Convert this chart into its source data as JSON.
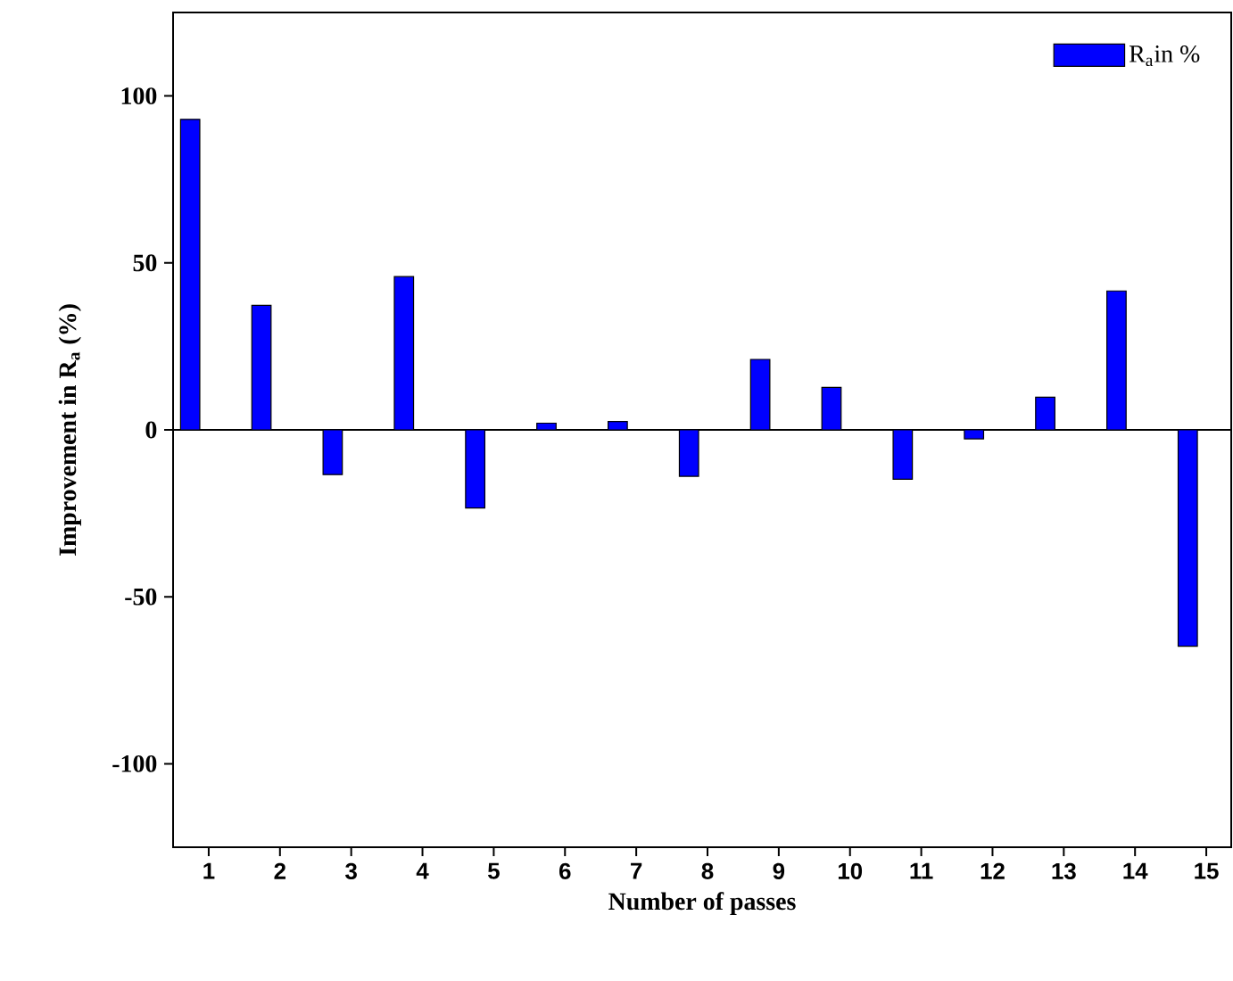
{
  "chart_data": {
    "type": "bar",
    "xlabel": "Number of passes",
    "ylabel": "Improvement in R$_{a}$ (%)",
    "categories": [
      "1",
      "2",
      "3",
      "4",
      "5",
      "6",
      "7",
      "8",
      "9",
      "10",
      "11",
      "12",
      "13",
      "14",
      "15"
    ],
    "series": [
      {
        "name": "R$_{a}$in %",
        "color": "#0000ff",
        "values": [
          93,
          37.3,
          -13.4,
          45.9,
          -23.4,
          2.0,
          2.5,
          -13.9,
          21.1,
          12.7,
          -14.8,
          -2.7,
          9.8,
          41.6,
          -64.8
        ]
      }
    ],
    "ylim": [
      -125,
      125
    ],
    "yticks": [
      -100,
      -50,
      0,
      50,
      100
    ],
    "legend": "top right"
  }
}
